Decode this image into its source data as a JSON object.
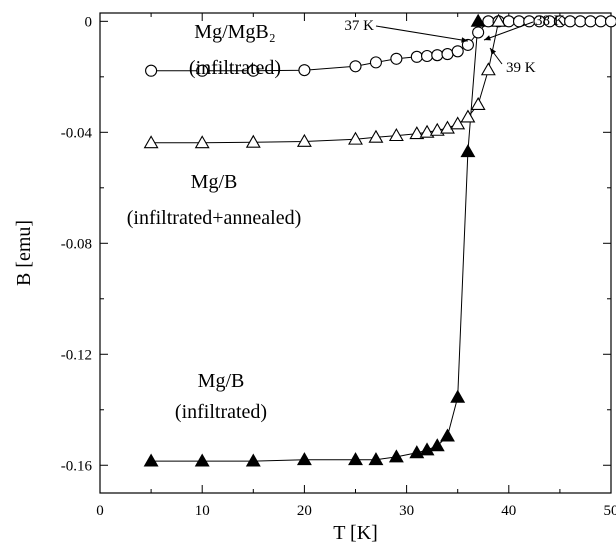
{
  "chart_data": {
    "type": "line",
    "xlabel": "T [K]",
    "ylabel": "B [emu]",
    "xlim": [
      0,
      50
    ],
    "ylim": [
      -0.17,
      0.003
    ],
    "xticks": [
      0,
      10,
      20,
      30,
      40,
      50
    ],
    "yticks": [
      0,
      -0.04,
      -0.08,
      -0.12,
      -0.16
    ],
    "ytick_labels": [
      "0",
      "-0.04",
      "-0.08",
      "-0.12",
      "-0.16"
    ],
    "grid": false,
    "series": [
      {
        "marker": "open-circle",
        "label_lines": [
          "Mg/MgB₂",
          "(infiltrated)"
        ],
        "x": [
          5,
          10,
          15,
          20,
          25,
          27,
          29,
          31,
          32,
          33,
          34,
          35,
          36,
          37,
          38,
          39,
          40,
          41,
          42,
          43,
          44,
          45,
          46,
          47,
          48,
          49,
          50
        ],
        "y": [
          -0.0178,
          -0.0178,
          -0.0178,
          -0.0176,
          -0.0162,
          -0.0148,
          -0.0135,
          -0.0128,
          -0.0125,
          -0.0122,
          -0.0118,
          -0.0108,
          -0.0085,
          -0.004,
          0,
          0,
          0,
          0,
          0,
          0,
          0,
          0,
          0,
          0,
          0,
          0,
          0
        ]
      },
      {
        "marker": "open-triangle",
        "label_lines": [
          "Mg/B",
          "(infiltrated+annealed)"
        ],
        "x": [
          5,
          10,
          15,
          20,
          25,
          27,
          29,
          31,
          32,
          33,
          34,
          35,
          36,
          37,
          38,
          39
        ],
        "y": [
          -0.0438,
          -0.0438,
          -0.0436,
          -0.0433,
          -0.0425,
          -0.0418,
          -0.0412,
          -0.0405,
          -0.04,
          -0.0393,
          -0.0385,
          -0.037,
          -0.0345,
          -0.03,
          -0.0175,
          0
        ]
      },
      {
        "marker": "filled-triangle",
        "label_lines": [
          "Mg/B",
          "(infiltrated)"
        ],
        "x": [
          5,
          10,
          15,
          20,
          25,
          27,
          29,
          31,
          32,
          33,
          34,
          35,
          36,
          37
        ],
        "y": [
          -0.1585,
          -0.1585,
          -0.1585,
          -0.158,
          -0.158,
          -0.158,
          -0.157,
          -0.1555,
          -0.1545,
          -0.153,
          -0.1495,
          -0.1355,
          -0.047,
          0
        ]
      }
    ],
    "annotations": [
      {
        "text": "37 K",
        "x": 37,
        "y": 0
      },
      {
        "text": "38 K",
        "x": 38,
        "y": 0
      },
      {
        "text": "39 K",
        "x": 39,
        "y": 0
      }
    ]
  }
}
